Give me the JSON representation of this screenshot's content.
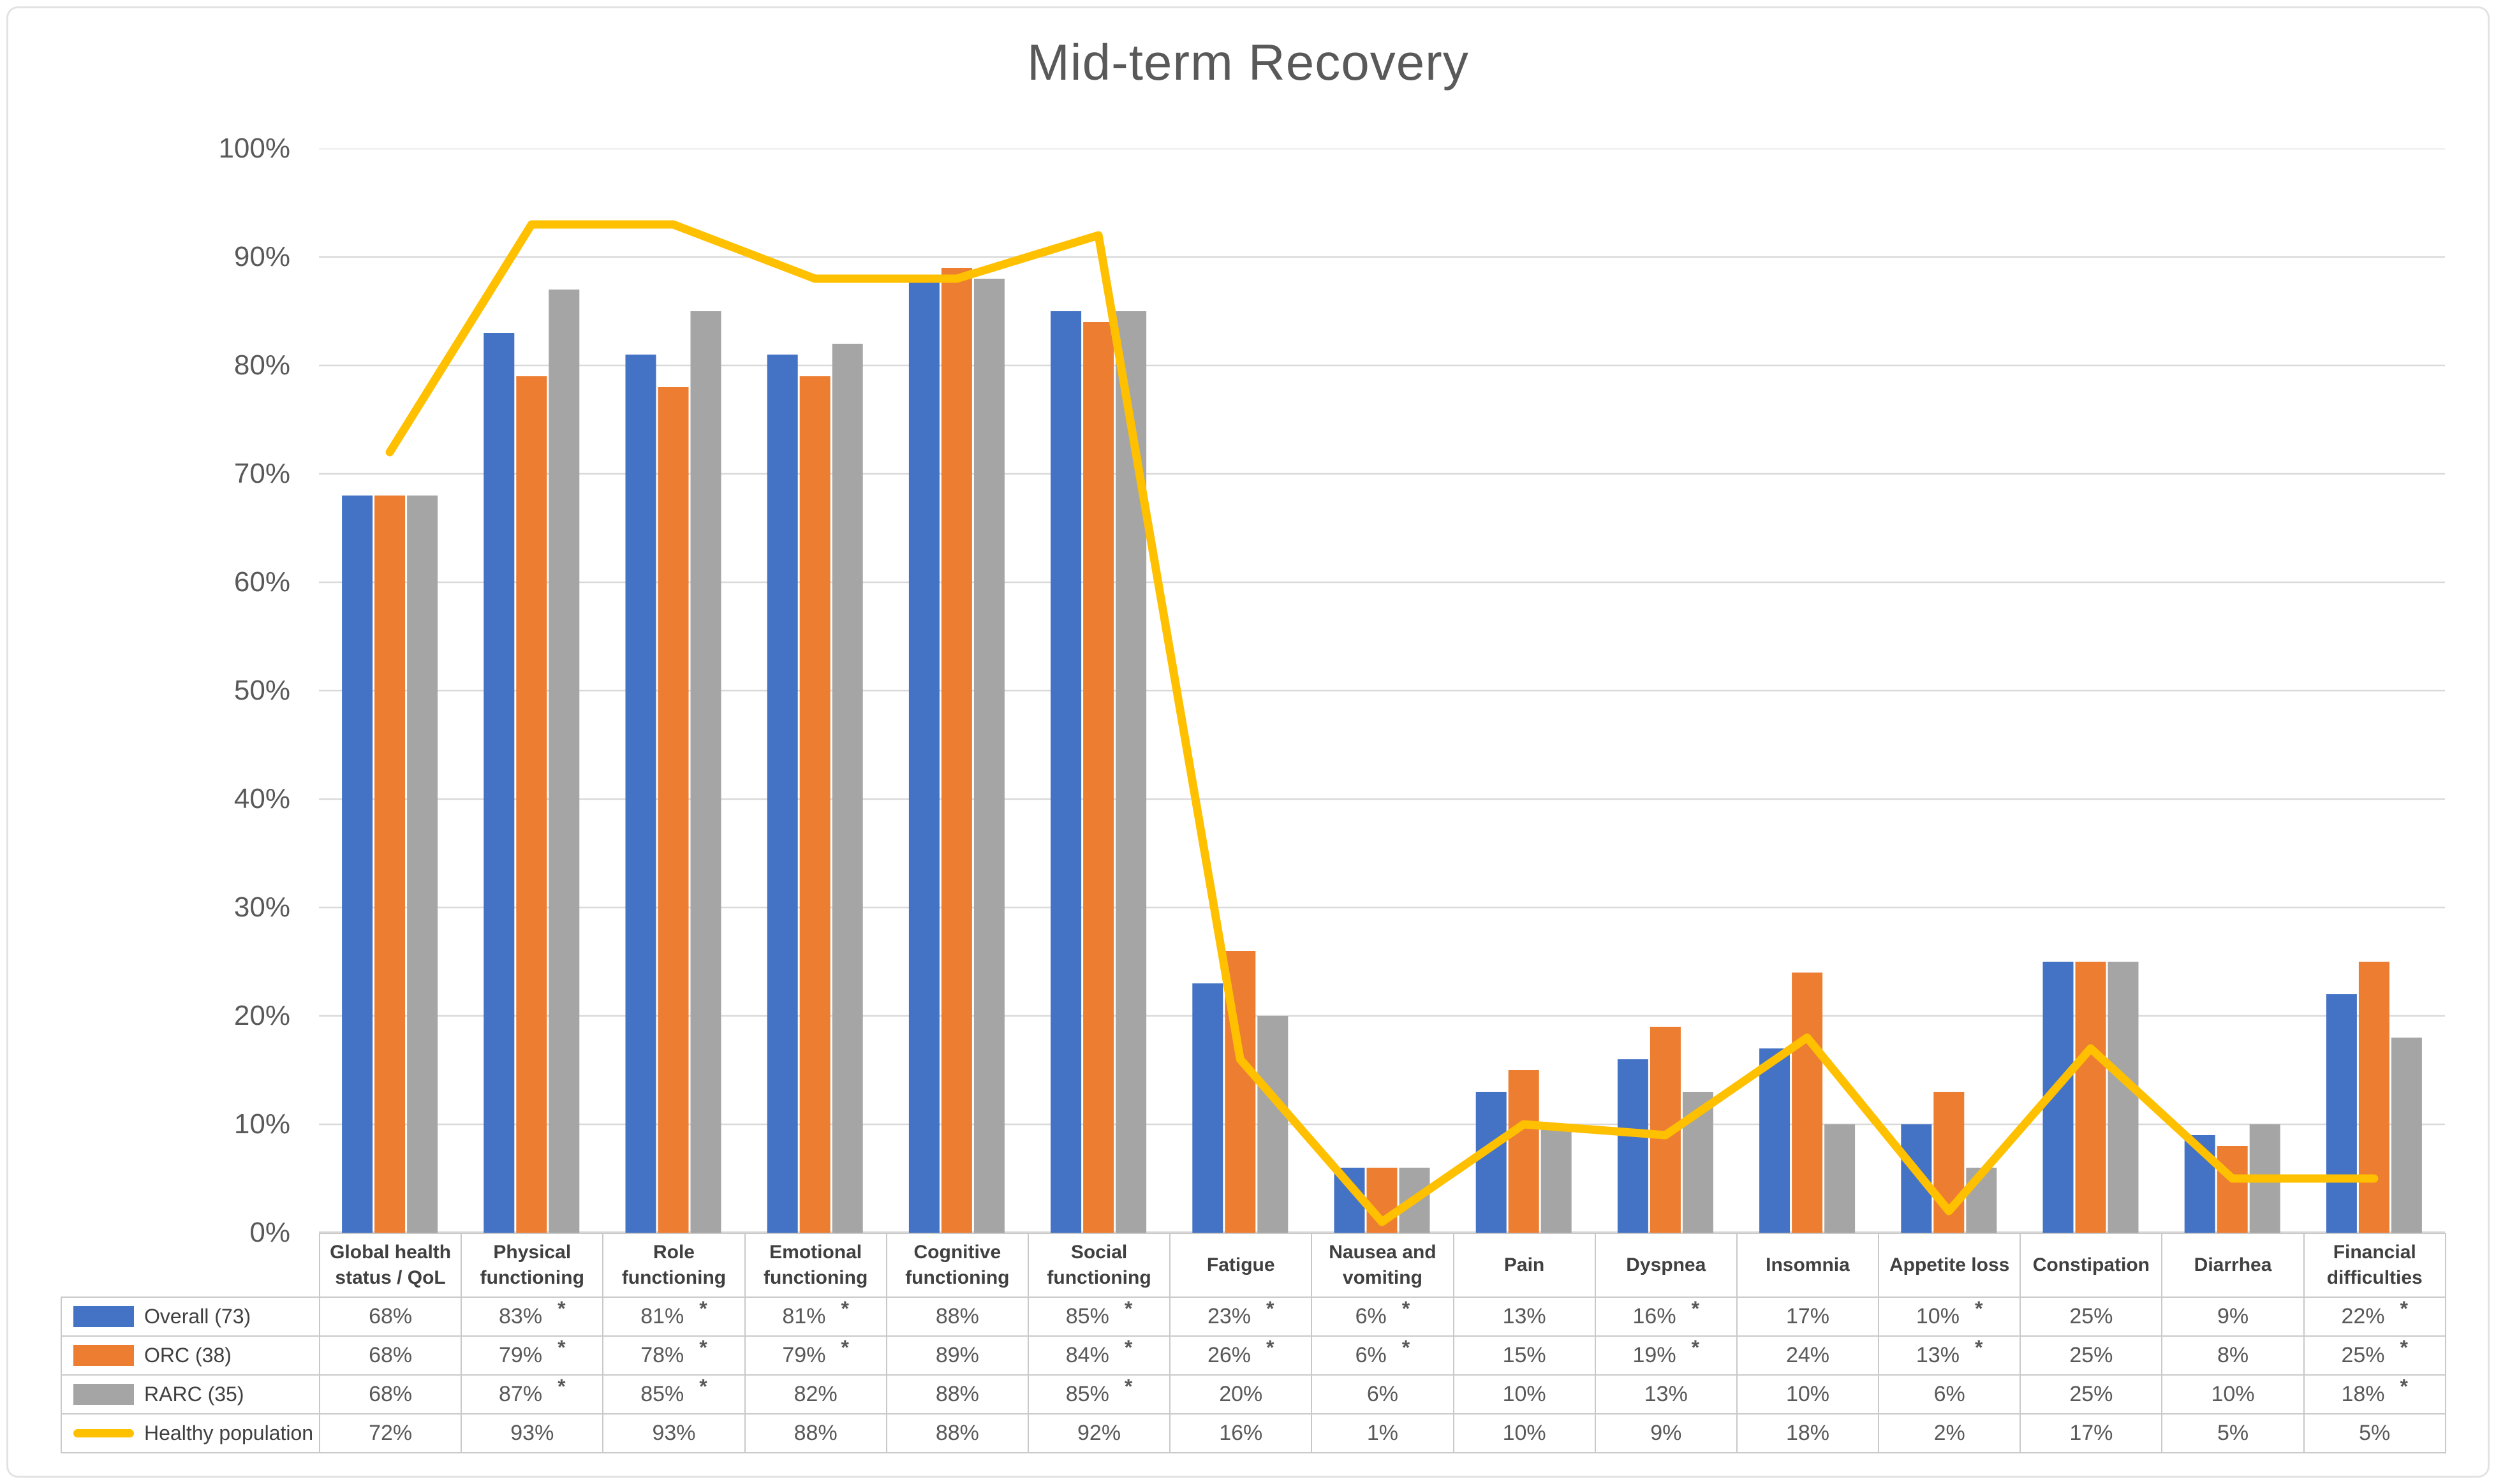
{
  "title": "Mid-term Recovery",
  "colors": {
    "overall_bar": "#4472C4",
    "orc_bar": "#ED7D31",
    "rarc_bar": "#A5A5A5",
    "healthy_line": "#FFC000",
    "gridline": "#D9D9D9",
    "axis_text": "#595959",
    "title_text": "#595959",
    "table_border": "#C9C9C9",
    "table_text": "#595959",
    "header_text": "#404040"
  },
  "chart_data": {
    "type": "bar",
    "title": "Mid-term Recovery",
    "categories": [
      "Global health status / QoL",
      "Physical functioning",
      "Role functioning",
      "Emotional functioning",
      "Cognitive functioning",
      "Social functioning",
      "Fatigue",
      "Nausea and vomiting",
      "Pain",
      "Dyspnea",
      "Insomnia",
      "Appetite loss",
      "Constipation",
      "Diarrhea",
      "Financial difficulties"
    ],
    "series": [
      {
        "name": "Overall (73)",
        "chart_type": "bar",
        "color": "#4472C4",
        "values": [
          68,
          83,
          81,
          81,
          88,
          85,
          23,
          6,
          13,
          16,
          17,
          10,
          25,
          9,
          22
        ],
        "significant": [
          false,
          true,
          true,
          true,
          false,
          true,
          true,
          true,
          false,
          true,
          false,
          true,
          false,
          false,
          true
        ]
      },
      {
        "name": "ORC (38)",
        "chart_type": "bar",
        "color": "#ED7D31",
        "values": [
          68,
          79,
          78,
          79,
          89,
          84,
          26,
          6,
          15,
          19,
          24,
          13,
          25,
          8,
          25
        ],
        "significant": [
          false,
          true,
          true,
          true,
          false,
          true,
          true,
          true,
          false,
          true,
          false,
          true,
          false,
          false,
          true
        ]
      },
      {
        "name": "RARC (35)",
        "chart_type": "bar",
        "color": "#A5A5A5",
        "values": [
          68,
          87,
          85,
          82,
          88,
          85,
          20,
          6,
          10,
          13,
          10,
          6,
          25,
          10,
          18
        ],
        "significant": [
          false,
          true,
          true,
          false,
          false,
          true,
          false,
          false,
          false,
          false,
          false,
          false,
          false,
          false,
          true
        ]
      },
      {
        "name": "Healthy population",
        "chart_type": "line",
        "color": "#FFC000",
        "values": [
          72,
          93,
          93,
          88,
          88,
          92,
          16,
          1,
          10,
          9,
          18,
          2,
          17,
          5,
          5
        ],
        "significant": [
          false,
          false,
          false,
          false,
          false,
          false,
          false,
          false,
          false,
          false,
          false,
          false,
          false,
          false,
          false
        ]
      }
    ],
    "ylim": [
      0,
      100
    ],
    "y_ticks": [
      "0%",
      "10%",
      "20%",
      "30%",
      "40%",
      "50%",
      "60%",
      "70%",
      "80%",
      "90%",
      "100%"
    ],
    "grid": true,
    "legend_position": "table-left-column",
    "data_table_shown": true,
    "value_suffix": "%",
    "significance_marker": "*"
  }
}
